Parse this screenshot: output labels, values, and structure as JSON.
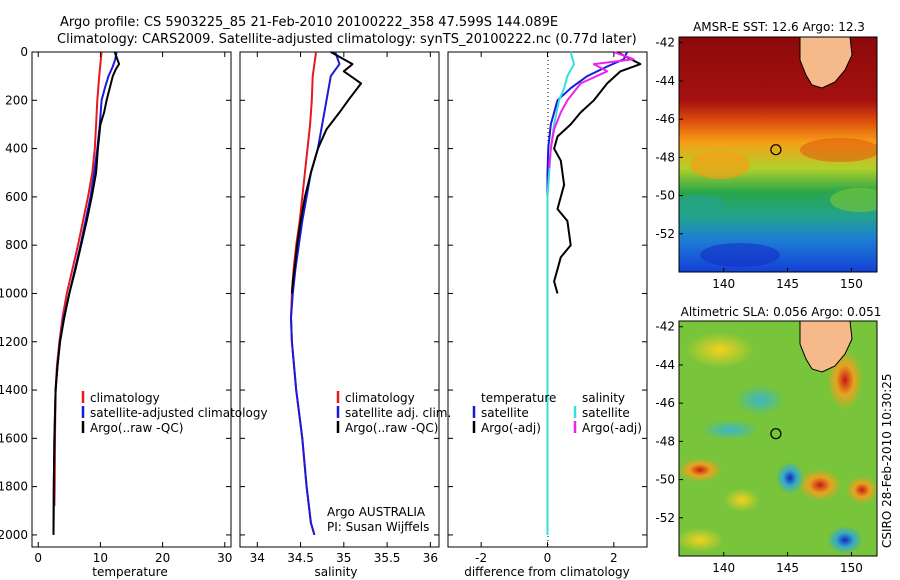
{
  "header": {
    "title_line1": "Argo profile: CS 5903225_85 21-Feb-2010 20100222_358 47.599S 144.089E",
    "title_line2": "Climatology: CARS2009. Satellite-adjusted climatology: synTS_20100222.nc (0.77d later)"
  },
  "side_note": "CSIRO 28-Feb-2010 10:30:25",
  "colors": {
    "climatology": "#e8191e",
    "satellite": "#1a1adb",
    "argo": "#000000",
    "sat_salinity": "#33e0e0",
    "argo_salinity": "#ee22ee"
  },
  "chart_data": [
    {
      "type": "line",
      "panel": "temperature-profile",
      "xlabel": "temperature",
      "ylabel": "",
      "xlim": [
        -1,
        31
      ],
      "ylim": [
        2050,
        0
      ],
      "xticks": [
        0,
        10,
        20,
        30
      ],
      "yticks": [
        0,
        200,
        400,
        600,
        800,
        1000,
        1200,
        1400,
        1600,
        1800,
        2000
      ],
      "legend": [
        "climatology",
        "satellite-adjusted climatology",
        "Argo(..raw -QC)"
      ],
      "series": [
        {
          "name": "climatology",
          "color": "climatology",
          "x": [
            10.2,
            10.0,
            9.8,
            9.5,
            9.3,
            9.1,
            8.7,
            8.0,
            7.2,
            6.4,
            5.5,
            4.6,
            3.9,
            3.4,
            3.0,
            2.8,
            2.7,
            2.65,
            2.6
          ],
          "y": [
            0,
            50,
            100,
            200,
            300,
            400,
            500,
            600,
            700,
            800,
            900,
            1000,
            1100,
            1200,
            1300,
            1400,
            1600,
            1800,
            1880
          ]
        },
        {
          "name": "satellite-adjusted climatology",
          "color": "satellite",
          "x": [
            12.6,
            12.4,
            12.0,
            11.3,
            10.7,
            10.2,
            9.9,
            9.5,
            9.0,
            8.4,
            7.6,
            6.8,
            5.9,
            5.0,
            4.1,
            3.5,
            3.1,
            2.8,
            2.6,
            2.5,
            2.45
          ],
          "y": [
            0,
            30,
            60,
            100,
            150,
            200,
            300,
            400,
            500,
            600,
            700,
            800,
            900,
            1000,
            1100,
            1200,
            1300,
            1400,
            1600,
            1800,
            2000
          ]
        },
        {
          "name": "Argo(..raw -QC)",
          "color": "argo",
          "x": [
            12.3,
            13.0,
            12.5,
            12.0,
            11.5,
            11.0,
            10.6,
            10.0,
            9.6,
            9.3,
            8.6,
            7.8,
            6.9,
            6.0,
            5.0,
            4.2,
            3.5,
            3.1,
            2.8,
            2.6,
            2.5,
            2.45
          ],
          "y": [
            0,
            50,
            70,
            100,
            150,
            200,
            250,
            300,
            400,
            500,
            600,
            700,
            800,
            900,
            1000,
            1100,
            1200,
            1300,
            1400,
            1600,
            1800,
            2000
          ]
        }
      ]
    },
    {
      "type": "line",
      "panel": "salinity-profile",
      "xlabel": "salinity",
      "ylabel": "",
      "xlim": [
        33.8,
        36.1
      ],
      "ylim": [
        2050,
        0
      ],
      "xticks": [
        34,
        34.5,
        35,
        35.5,
        36
      ],
      "xtick_labels": [
        "34",
        "34.5",
        "35",
        "35.5",
        "36"
      ],
      "legend": [
        "climatology",
        "satellite adj. clim.",
        "Argo(..raw -QC)"
      ],
      "annotation_line1": "Argo AUSTRALIA",
      "annotation_line2": "PI: Susan Wijffels",
      "series": [
        {
          "name": "climatology",
          "color": "climatology",
          "x": [
            34.68,
            34.66,
            34.64,
            34.63,
            34.61,
            34.58,
            34.55,
            34.52,
            34.49,
            34.45,
            34.42,
            34.4,
            34.39,
            34.4,
            34.45,
            34.52,
            34.57,
            34.62,
            34.66
          ],
          "y": [
            0,
            50,
            100,
            200,
            300,
            400,
            500,
            600,
            700,
            800,
            900,
            1000,
            1100,
            1200,
            1400,
            1600,
            1800,
            1950,
            2000
          ]
        },
        {
          "name": "satellite adj. clim.",
          "color": "satellite",
          "x": [
            34.9,
            34.95,
            34.85,
            34.8,
            34.75,
            34.7,
            34.62,
            34.57,
            34.52,
            34.48,
            34.44,
            34.41,
            34.39,
            34.4,
            34.45,
            34.52,
            34.57,
            34.62,
            34.66
          ],
          "y": [
            0,
            50,
            100,
            200,
            300,
            400,
            500,
            600,
            700,
            800,
            900,
            1000,
            1100,
            1200,
            1400,
            1600,
            1800,
            1950,
            2000
          ]
        },
        {
          "name": "Argo(..raw -QC)",
          "color": "argo",
          "x": [
            34.85,
            35.1,
            35.0,
            35.2,
            35.05,
            34.95,
            34.8,
            34.7,
            34.62,
            34.55,
            34.5,
            34.46,
            34.43,
            34.41,
            34.4
          ],
          "y": [
            0,
            50,
            80,
            130,
            200,
            250,
            320,
            400,
            500,
            600,
            700,
            800,
            900,
            950,
            1000
          ]
        }
      ]
    },
    {
      "type": "line",
      "panel": "difference-from-climatology",
      "xlabel": "difference from climatology",
      "ylabel": "",
      "xlim": [
        -3,
        3
      ],
      "ylim": [
        2050,
        0
      ],
      "xticks": [
        -2,
        0,
        2
      ],
      "legend_temp_title": "temperature",
      "legend_sal_title": "salinity",
      "legend": [
        "satellite",
        "Argo(-adj)",
        "satellite",
        "Argo(-adj)"
      ],
      "series": [
        {
          "name": "satellite",
          "group": "temperature",
          "color": "satellite",
          "x": [
            2.4,
            2.3,
            1.8,
            1.2,
            0.7,
            0.3,
            0.1,
            0.02,
            0,
            0,
            0,
            0,
            0,
            0,
            0,
            0,
            0
          ],
          "y": [
            0,
            30,
            60,
            100,
            150,
            200,
            300,
            400,
            500,
            700,
            900,
            1100,
            1300,
            1500,
            1700,
            1900,
            2000
          ]
        },
        {
          "name": "Argo(-adj)",
          "group": "temperature",
          "color": "argo",
          "x": [
            2.1,
            2.8,
            2.2,
            1.8,
            1.4,
            1.0,
            0.7,
            0.3,
            0.2,
            0.4,
            0.5,
            0.3,
            0.6,
            0.7,
            0.4,
            0.3,
            0.2,
            0.3
          ],
          "y": [
            0,
            50,
            80,
            130,
            200,
            250,
            300,
            350,
            400,
            450,
            550,
            650,
            700,
            800,
            850,
            900,
            950,
            1000
          ]
        },
        {
          "name": "satellite",
          "group": "salinity",
          "color": "sat_salinity",
          "x": [
            0.7,
            0.8,
            0.6,
            0.5,
            0.35,
            0.2,
            0.1,
            0.05,
            0,
            0,
            0,
            0,
            0,
            0,
            0,
            0
          ],
          "y": [
            0,
            50,
            100,
            150,
            200,
            300,
            400,
            500,
            600,
            800,
            1000,
            1200,
            1400,
            1600,
            1800,
            2000
          ]
        },
        {
          "name": "Argo(-adj)",
          "group": "salinity",
          "color": "argo_salinity",
          "x": [
            2.0,
            2.6,
            1.4,
            1.8,
            1.0,
            0.6,
            0.4,
            0.2,
            0.1,
            0.05
          ],
          "y": [
            0,
            30,
            50,
            80,
            130,
            200,
            250,
            320,
            400,
            480
          ]
        }
      ]
    },
    {
      "type": "heatmap",
      "panel": "amsre-sst-map",
      "title": "AMSR-E SST: 12.6 Argo: 12.3",
      "xlim": [
        136.5,
        152
      ],
      "ylim": [
        -54,
        -41.7
      ],
      "xticks": [
        140,
        145,
        150
      ],
      "yticks": [
        -42,
        -44,
        -46,
        -48,
        -50,
        -52
      ],
      "argo_position": {
        "lon": 144.089,
        "lat": -47.599
      }
    },
    {
      "type": "heatmap",
      "panel": "altimetric-sla-map",
      "title": "Altimetric SLA: 0.056 Argo: 0.051",
      "xlim": [
        136.5,
        152
      ],
      "ylim": [
        -54,
        -41.7
      ],
      "xticks": [
        140,
        145,
        150
      ],
      "yticks": [
        -42,
        -44,
        -46,
        -48,
        -50,
        -52
      ],
      "argo_position": {
        "lon": 144.089,
        "lat": -47.599
      }
    }
  ]
}
